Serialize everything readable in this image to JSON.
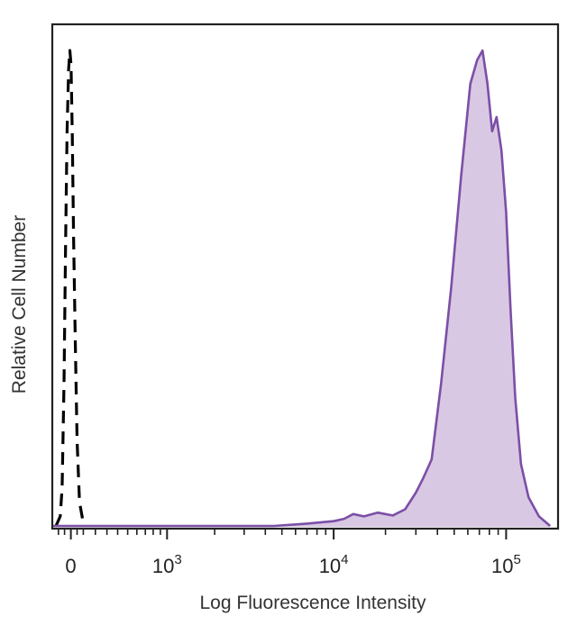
{
  "chart_data": {
    "type": "area",
    "title": "",
    "xlabel": "Log Fluorescence Intensity",
    "ylabel": "Relative Cell Number",
    "x_scale": "biexponential",
    "xlim": [
      -150,
      200000
    ],
    "ylim": [
      0,
      1.05
    ],
    "grid": false,
    "legend": "none",
    "x_tick_labels": [
      {
        "value": 0,
        "base": "0",
        "exp": ""
      },
      {
        "value": 1000,
        "base": "10",
        "exp": "3"
      },
      {
        "value": 10000,
        "base": "10",
        "exp": "4"
      },
      {
        "value": 100000,
        "base": "10",
        "exp": "5"
      }
    ],
    "series": [
      {
        "style": "dashed",
        "color": "#000000",
        "fill": "none",
        "points": [
          [
            -120,
            0.0
          ],
          [
            -85,
            0.02
          ],
          [
            -70,
            0.08
          ],
          [
            -55,
            0.3
          ],
          [
            -42,
            0.6
          ],
          [
            -30,
            0.83
          ],
          [
            -18,
            0.96
          ],
          [
            -8,
            1.0
          ],
          [
            2,
            0.97
          ],
          [
            12,
            0.82
          ],
          [
            22,
            0.61
          ],
          [
            35,
            0.4
          ],
          [
            50,
            0.18
          ],
          [
            70,
            0.05
          ],
          [
            105,
            0.0
          ]
        ]
      },
      {
        "style": "solid",
        "color": "#7b4fa6",
        "fill": "#d9c8e3",
        "points": [
          [
            -150,
            0.0
          ],
          [
            -40,
            0.0
          ],
          [
            300,
            0.0
          ],
          [
            2000,
            0.0
          ],
          [
            4500,
            0.0
          ],
          [
            7000,
            0.005
          ],
          [
            10000,
            0.01
          ],
          [
            11500,
            0.015
          ],
          [
            13000,
            0.025
          ],
          [
            15000,
            0.02
          ],
          [
            18000,
            0.028
          ],
          [
            22000,
            0.022
          ],
          [
            26000,
            0.035
          ],
          [
            30000,
            0.07
          ],
          [
            33000,
            0.1
          ],
          [
            37000,
            0.14
          ],
          [
            42000,
            0.3
          ],
          [
            48000,
            0.5
          ],
          [
            55000,
            0.74
          ],
          [
            62000,
            0.93
          ],
          [
            68000,
            0.98
          ],
          [
            73000,
            1.0
          ],
          [
            78000,
            0.93
          ],
          [
            83000,
            0.83
          ],
          [
            88000,
            0.86
          ],
          [
            94000,
            0.79
          ],
          [
            100000,
            0.66
          ],
          [
            106000,
            0.46
          ],
          [
            113000,
            0.27
          ],
          [
            122000,
            0.13
          ],
          [
            135000,
            0.06
          ],
          [
            155000,
            0.02
          ],
          [
            180000,
            0.0
          ]
        ]
      }
    ]
  }
}
